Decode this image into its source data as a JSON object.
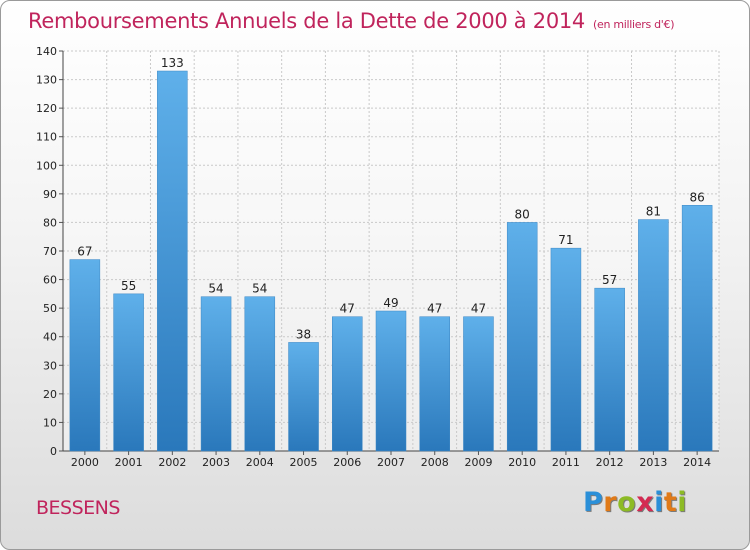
{
  "title": "Remboursements Annuels de la Dette de 2000 à 2014",
  "subtitle": "(en milliers d'€)",
  "commune": "BESSENS",
  "logo": {
    "letters": [
      "P",
      "r",
      "o",
      "x",
      "i",
      "t",
      "i"
    ],
    "colors": [
      "#2a8fd8",
      "#e07a18",
      "#8dbb25",
      "#d42a52",
      "#2a8fd8",
      "#e07a18",
      "#8dbb25"
    ]
  },
  "chart_data": {
    "type": "bar",
    "title": "Remboursements Annuels de la Dette de 2000 à 2014",
    "subtitle": "(en milliers d'€)",
    "categories": [
      "2000",
      "2001",
      "2002",
      "2003",
      "2004",
      "2005",
      "2006",
      "2007",
      "2008",
      "2009",
      "2010",
      "2011",
      "2012",
      "2013",
      "2014"
    ],
    "values": [
      67,
      55,
      133,
      54,
      54,
      38,
      47,
      49,
      47,
      47,
      80,
      71,
      57,
      81,
      86
    ],
    "ylim": [
      0,
      140
    ],
    "yticks": [
      0,
      10,
      20,
      30,
      40,
      50,
      60,
      70,
      80,
      90,
      100,
      110,
      120,
      130,
      140
    ],
    "grid": true,
    "bar_color_top": "#5fb0ea",
    "bar_color_bottom": "#2a78bb"
  }
}
